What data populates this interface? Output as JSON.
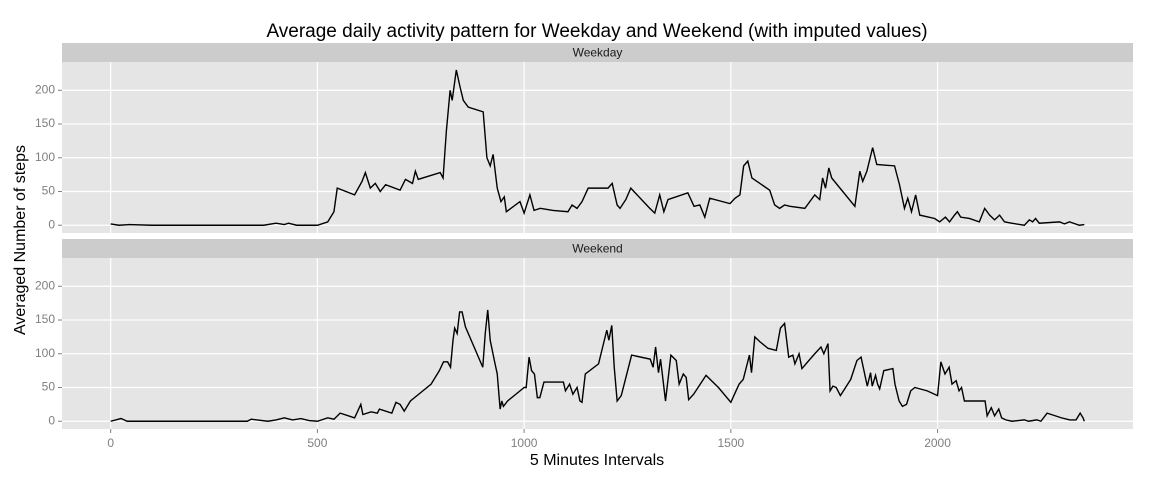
{
  "chart_data": {
    "type": "line",
    "title": "Average daily activity pattern for Weekday and Weekend (with imputed values)",
    "x_label": "5 Minutes Intervals",
    "y_label": "Averaged Number of steps",
    "xlim": [
      -117.75,
      2472.75
    ],
    "xticks": [
      0,
      500,
      1000,
      1500,
      2000
    ],
    "ylim": [
      -11.5,
      241.9
    ],
    "yticks": [
      0,
      50,
      100,
      150,
      200
    ],
    "grid": true,
    "color": "#000000",
    "panels": [
      {
        "name": "Weekday",
        "x": [
          0,
          20,
          45,
          100,
          240,
          370,
          400,
          420,
          430,
          450,
          500,
          525,
          540,
          548,
          590,
          608,
          616,
          628,
          640,
          652,
          665,
          700,
          713,
          730,
          737,
          744,
          797,
          804,
          812,
          821,
          826,
          836,
          845,
          853,
          865,
          901,
          910,
          918,
          925,
          935,
          944,
          952,
          957,
          990,
          1000,
          1014,
          1024,
          1039,
          1070,
          1106,
          1116,
          1128,
          1140,
          1155,
          1203,
          1213,
          1225,
          1232,
          1246,
          1258,
          1304,
          1316,
          1328,
          1338,
          1348,
          1396,
          1411,
          1425,
          1437,
          1449,
          1498,
          1510,
          1522,
          1531,
          1541,
          1551,
          1594,
          1606,
          1618,
          1630,
          1643,
          1679,
          1703,
          1715,
          1722,
          1729,
          1737,
          1744,
          1800,
          1812,
          1819,
          1829,
          1843,
          1853,
          1896,
          1908,
          1920,
          1928,
          1937,
          1947,
          1957,
          1993,
          2005,
          2019,
          2029,
          2041,
          2048,
          2056,
          2077,
          2101,
          2114,
          2126,
          2138,
          2150,
          2162,
          2179,
          2210,
          2222,
          2230,
          2237,
          2246,
          2295,
          2307,
          2319,
          2343,
          2355
        ],
        "values": [
          2,
          0,
          1,
          0,
          0,
          0,
          3,
          1,
          3,
          0,
          0,
          5,
          20,
          55,
          45,
          65,
          78,
          55,
          62,
          50,
          60,
          52,
          68,
          62,
          80,
          68,
          78,
          70,
          140,
          200,
          185,
          230,
          205,
          185,
          175,
          168,
          100,
          88,
          105,
          55,
          35,
          42,
          20,
          35,
          18,
          45,
          22,
          25,
          22,
          20,
          30,
          25,
          35,
          55,
          55,
          62,
          30,
          25,
          38,
          55,
          25,
          18,
          45,
          20,
          38,
          48,
          28,
          30,
          12,
          40,
          32,
          40,
          45,
          88,
          95,
          70,
          52,
          30,
          25,
          30,
          28,
          25,
          45,
          38,
          70,
          55,
          85,
          70,
          28,
          80,
          65,
          80,
          115,
          90,
          88,
          60,
          25,
          40,
          20,
          45,
          15,
          10,
          5,
          12,
          5,
          15,
          20,
          12,
          10,
          5,
          25,
          15,
          8,
          15,
          5,
          3,
          0,
          8,
          5,
          10,
          3,
          5,
          2,
          5,
          0,
          1
        ]
      },
      {
        "name": "Weekend",
        "x": [
          0,
          25,
          40,
          130,
          330,
          340,
          380,
          400,
          420,
          440,
          460,
          480,
          500,
          510,
          525,
          540,
          555,
          575,
          590,
          605,
          610,
          630,
          645,
          650,
          680,
          690,
          700,
          710,
          725,
          745,
          775,
          795,
          805,
          815,
          822,
          828,
          832,
          838,
          844,
          850,
          858,
          900,
          906,
          912,
          918,
          928,
          935,
          942,
          946,
          950,
          960,
          990,
          1000,
          1005,
          1012,
          1018,
          1025,
          1032,
          1038,
          1048,
          1095,
          1100,
          1110,
          1118,
          1128,
          1135,
          1140,
          1148,
          1180,
          1200,
          1205,
          1212,
          1218,
          1225,
          1235,
          1260,
          1305,
          1312,
          1318,
          1325,
          1330,
          1342,
          1355,
          1368,
          1375,
          1385,
          1392,
          1398,
          1410,
          1440,
          1470,
          1500,
          1520,
          1530,
          1545,
          1550,
          1558,
          1570,
          1590,
          1610,
          1620,
          1630,
          1640,
          1650,
          1655,
          1665,
          1672,
          1700,
          1718,
          1725,
          1735,
          1740,
          1747,
          1755,
          1765,
          1790,
          1805,
          1815,
          1830,
          1838,
          1842,
          1850,
          1855,
          1860,
          1870,
          1892,
          1897,
          1907,
          1915,
          1925,
          1935,
          1945,
          1975,
          2000,
          2008,
          2018,
          2028,
          2035,
          2045,
          2052,
          2058,
          2065,
          2115,
          2120,
          2130,
          2138,
          2148,
          2155,
          2165,
          2180,
          2210,
          2220,
          2240,
          2250,
          2265,
          2300,
          2320,
          2335,
          2345,
          2352,
          2355
        ],
        "values": [
          0,
          4,
          0,
          0,
          0,
          3,
          0,
          2,
          5,
          2,
          4,
          1,
          0,
          2,
          5,
          3,
          12,
          8,
          5,
          25,
          10,
          14,
          12,
          18,
          12,
          28,
          25,
          15,
          30,
          40,
          55,
          75,
          88,
          88,
          80,
          120,
          138,
          130,
          162,
          162,
          140,
          80,
          130,
          165,
          120,
          90,
          70,
          18,
          30,
          22,
          30,
          45,
          50,
          50,
          95,
          75,
          70,
          35,
          35,
          58,
          58,
          45,
          55,
          40,
          50,
          30,
          28,
          70,
          85,
          135,
          120,
          142,
          80,
          30,
          38,
          98,
          92,
          80,
          110,
          72,
          92,
          30,
          98,
          90,
          55,
          70,
          65,
          32,
          40,
          68,
          50,
          28,
          55,
          62,
          98,
          72,
          125,
          118,
          108,
          105,
          138,
          145,
          95,
          98,
          85,
          100,
          78,
          98,
          110,
          100,
          115,
          45,
          52,
          50,
          38,
          62,
          90,
          95,
          52,
          72,
          52,
          68,
          55,
          48,
          75,
          78,
          55,
          30,
          22,
          25,
          45,
          50,
          45,
          38,
          88,
          70,
          80,
          55,
          60,
          45,
          50,
          30,
          30,
          8,
          20,
          8,
          18,
          5,
          2,
          0,
          2,
          0,
          2,
          0,
          12,
          5,
          2,
          2,
          12,
          5,
          0
        ]
      }
    ]
  }
}
